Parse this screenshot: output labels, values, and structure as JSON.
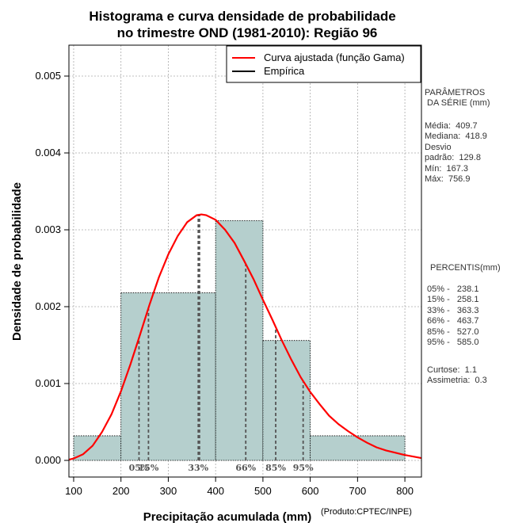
{
  "chart_data": {
    "type": "histogram",
    "title": [
      "Histograma e curva densidade de probabilidade",
      "no trimestre OND (1981-2010): Região 96"
    ],
    "xlabel": "Precipitação acumulada (mm)",
    "ylabel": "Densidade de probabilidade",
    "xlim": [
      90,
      835
    ],
    "ylim": [
      0,
      0.0054
    ],
    "x_ticks": [
      100,
      200,
      300,
      400,
      500,
      600,
      700,
      800
    ],
    "y_ticks": [
      0.0,
      0.001,
      0.002,
      0.003,
      0.004,
      0.005
    ],
    "y_tick_labels": [
      "0.000",
      "0.001",
      "0.002",
      "0.003",
      "0.004",
      "0.005"
    ],
    "grid": true,
    "bars": [
      {
        "x0": 100,
        "x1": 200,
        "density": 0.00032
      },
      {
        "x0": 200,
        "x1": 400,
        "density": 0.00218
      },
      {
        "x0": 400,
        "x1": 500,
        "density": 0.00312
      },
      {
        "x0": 500,
        "x1": 600,
        "density": 0.00156
      },
      {
        "x0": 600,
        "x1": 800,
        "density": 0.00032
      }
    ],
    "fitted_curve": {
      "name": "Curva ajustada (função Gama)",
      "points": [
        [
          90,
          1e-05
        ],
        [
          100,
          2.5e-05
        ],
        [
          120,
          8e-05
        ],
        [
          140,
          0.00019
        ],
        [
          160,
          0.00037
        ],
        [
          180,
          0.0006
        ],
        [
          200,
          0.0009
        ],
        [
          220,
          0.00125
        ],
        [
          240,
          0.00163
        ],
        [
          260,
          0.00202
        ],
        [
          280,
          0.00238
        ],
        [
          300,
          0.00268
        ],
        [
          320,
          0.00292
        ],
        [
          340,
          0.0031
        ],
        [
          360,
          0.00319
        ],
        [
          370,
          0.0032
        ],
        [
          380,
          0.00319
        ],
        [
          400,
          0.00313
        ],
        [
          420,
          0.003
        ],
        [
          440,
          0.00283
        ],
        [
          460,
          0.0026
        ],
        [
          480,
          0.00236
        ],
        [
          500,
          0.00209
        ],
        [
          520,
          0.00183
        ],
        [
          540,
          0.00156
        ],
        [
          560,
          0.00131
        ],
        [
          580,
          0.00108
        ],
        [
          600,
          0.00089
        ],
        [
          620,
          0.00073
        ],
        [
          640,
          0.00058
        ],
        [
          660,
          0.00047
        ],
        [
          680,
          0.00038
        ],
        [
          700,
          0.0003
        ],
        [
          720,
          0.00023
        ],
        [
          740,
          0.00017
        ],
        [
          760,
          0.00013
        ],
        [
          780,
          0.0001
        ],
        [
          800,
          7e-05
        ],
        [
          835,
          3e-05
        ]
      ]
    },
    "mode_line": {
      "x": 366,
      "density": 0.0032
    },
    "percentile_lines": [
      {
        "label": "05%",
        "x": 238.1,
        "density": 0.00159
      },
      {
        "label": "15%",
        "x": 258.1,
        "density": 0.00197
      },
      {
        "label": "33%",
        "x": 363.3,
        "density": 0.0032
      },
      {
        "label": "66%",
        "x": 463.7,
        "density": 0.00256
      },
      {
        "label": "85%",
        "x": 527.0,
        "density": 0.00173
      },
      {
        "label": "95%",
        "x": 585.0,
        "density": 0.00103
      }
    ],
    "legend": [
      {
        "label": "Curva ajustada (função Gama)",
        "color": "#ff0000"
      },
      {
        "label": "Empírica",
        "color": "#000000"
      }
    ],
    "colors": {
      "bar_fill": "#b5cfcd",
      "curve": "#ff0000",
      "grid": "#aaaaaa"
    }
  },
  "side_panel": {
    "params_title": "PARÂMETROS\n DA SÉRIE (mm)",
    "params_body": "Média:  409.7\nMediana:  418.9\nDesvio\npadrão:  129.8\nMín:  167.3\nMáx:  756.9",
    "percentis_title": "PERCENTIS(mm)",
    "percentis_body": "05% -   238.1\n15% -   258.1\n33% -   363.3\n66% -   463.7\n85% -   527.0\n95% -   585.0",
    "shape_body": "Curtose:  1.1\nAssimetria:  0.3"
  },
  "credit": "(Produto:CPTEC/INPE)"
}
